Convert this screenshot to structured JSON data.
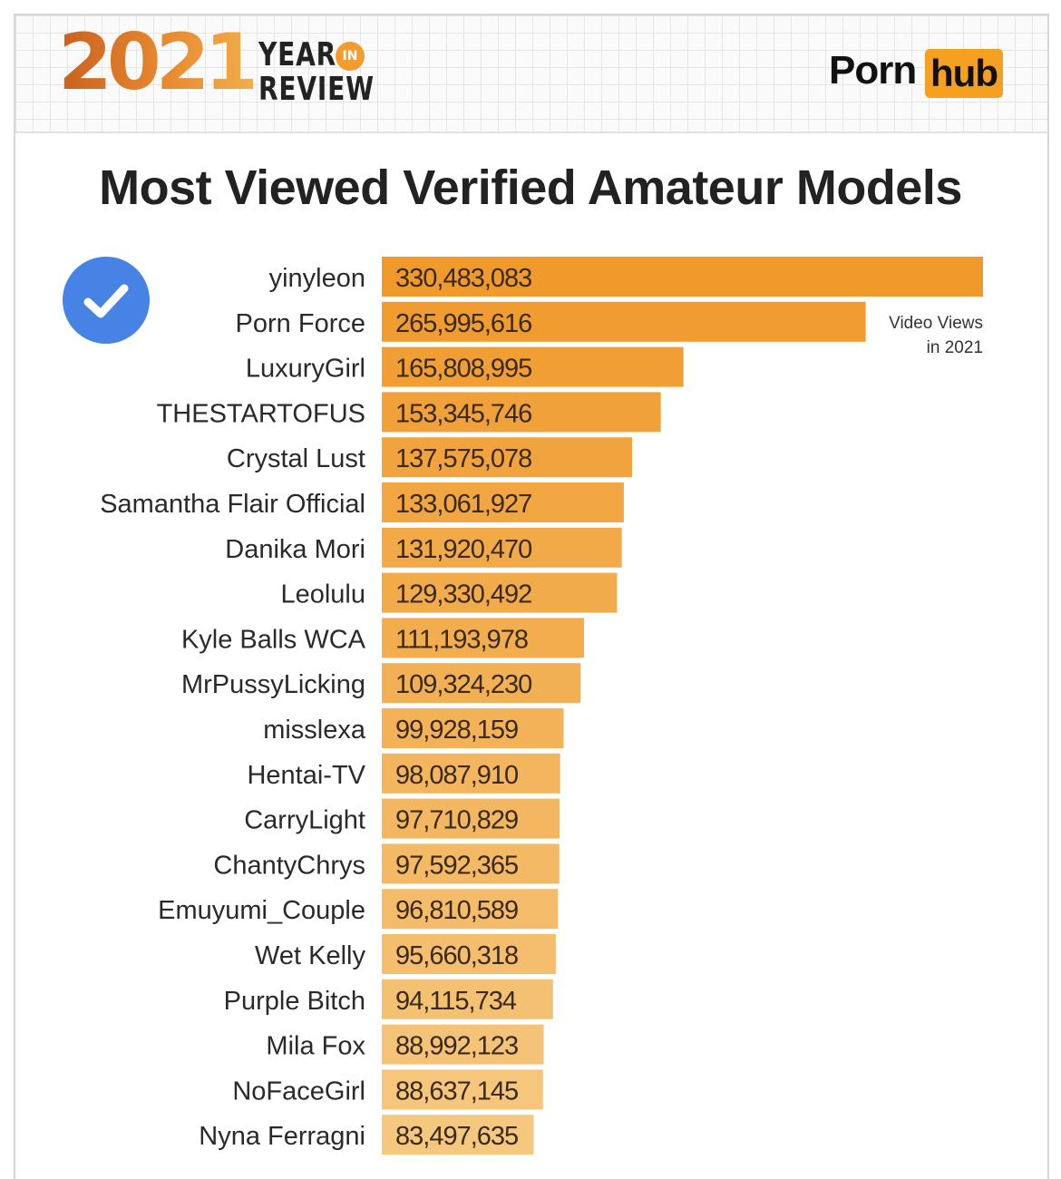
{
  "header": {
    "year": "2021",
    "year_label_1": "YEAR",
    "year_label_in": "IN",
    "year_label_2": "REVIEW",
    "logo_left": "Porn",
    "logo_right": "hub"
  },
  "title": "Most Viewed Verified Amateur Models",
  "note": {
    "line1": "Video Views",
    "line2": "in 2021"
  },
  "colors": {
    "bar_top": "#f09a2c",
    "bar_bottom": "#f5c880",
    "accent": "#f5a020",
    "check": "#4782e5"
  },
  "icons": {
    "verified": "verified-check-icon"
  },
  "chart_data": {
    "type": "bar",
    "orientation": "horizontal",
    "title": "Most Viewed Verified Amateur Models",
    "categories": [
      "yinyleon",
      "Porn Force",
      "LuxuryGirl",
      "THESTARTOFUS",
      "Crystal Lust",
      "Samantha Flair Official",
      "Danika Mori",
      "Leolulu",
      "Kyle Balls WCA",
      "MrPussyLicking",
      "misslexa",
      "Hentai-TV",
      "CarryLight",
      "ChantyChrys",
      "Emuyumi_Couple",
      "Wet Kelly",
      "Purple Bitch",
      "Mila Fox",
      "NoFaceGirl",
      "Nyna Ferragni"
    ],
    "values": [
      330483083,
      265995616,
      165808995,
      153345746,
      137575078,
      133061927,
      131920470,
      129330492,
      111193978,
      109324230,
      99928159,
      98087910,
      97710829,
      97592365,
      96810589,
      95660318,
      94115734,
      88992123,
      88637145,
      83497635
    ],
    "labels": [
      "330,483,083",
      "265,995,616",
      "165,808,995",
      "153,345,746",
      "137,575,078",
      "133,061,927",
      "131,920,470",
      "129,330,492",
      "111,193,978",
      "109,324,230",
      "99,928,159",
      "98,087,910",
      "97,710,829",
      "97,592,365",
      "96,810,589",
      "95,660,318",
      "94,115,734",
      "88,992,123",
      "88,637,145",
      "83,497,635"
    ],
    "xlim": [
      0,
      330483083
    ],
    "grid": false
  }
}
